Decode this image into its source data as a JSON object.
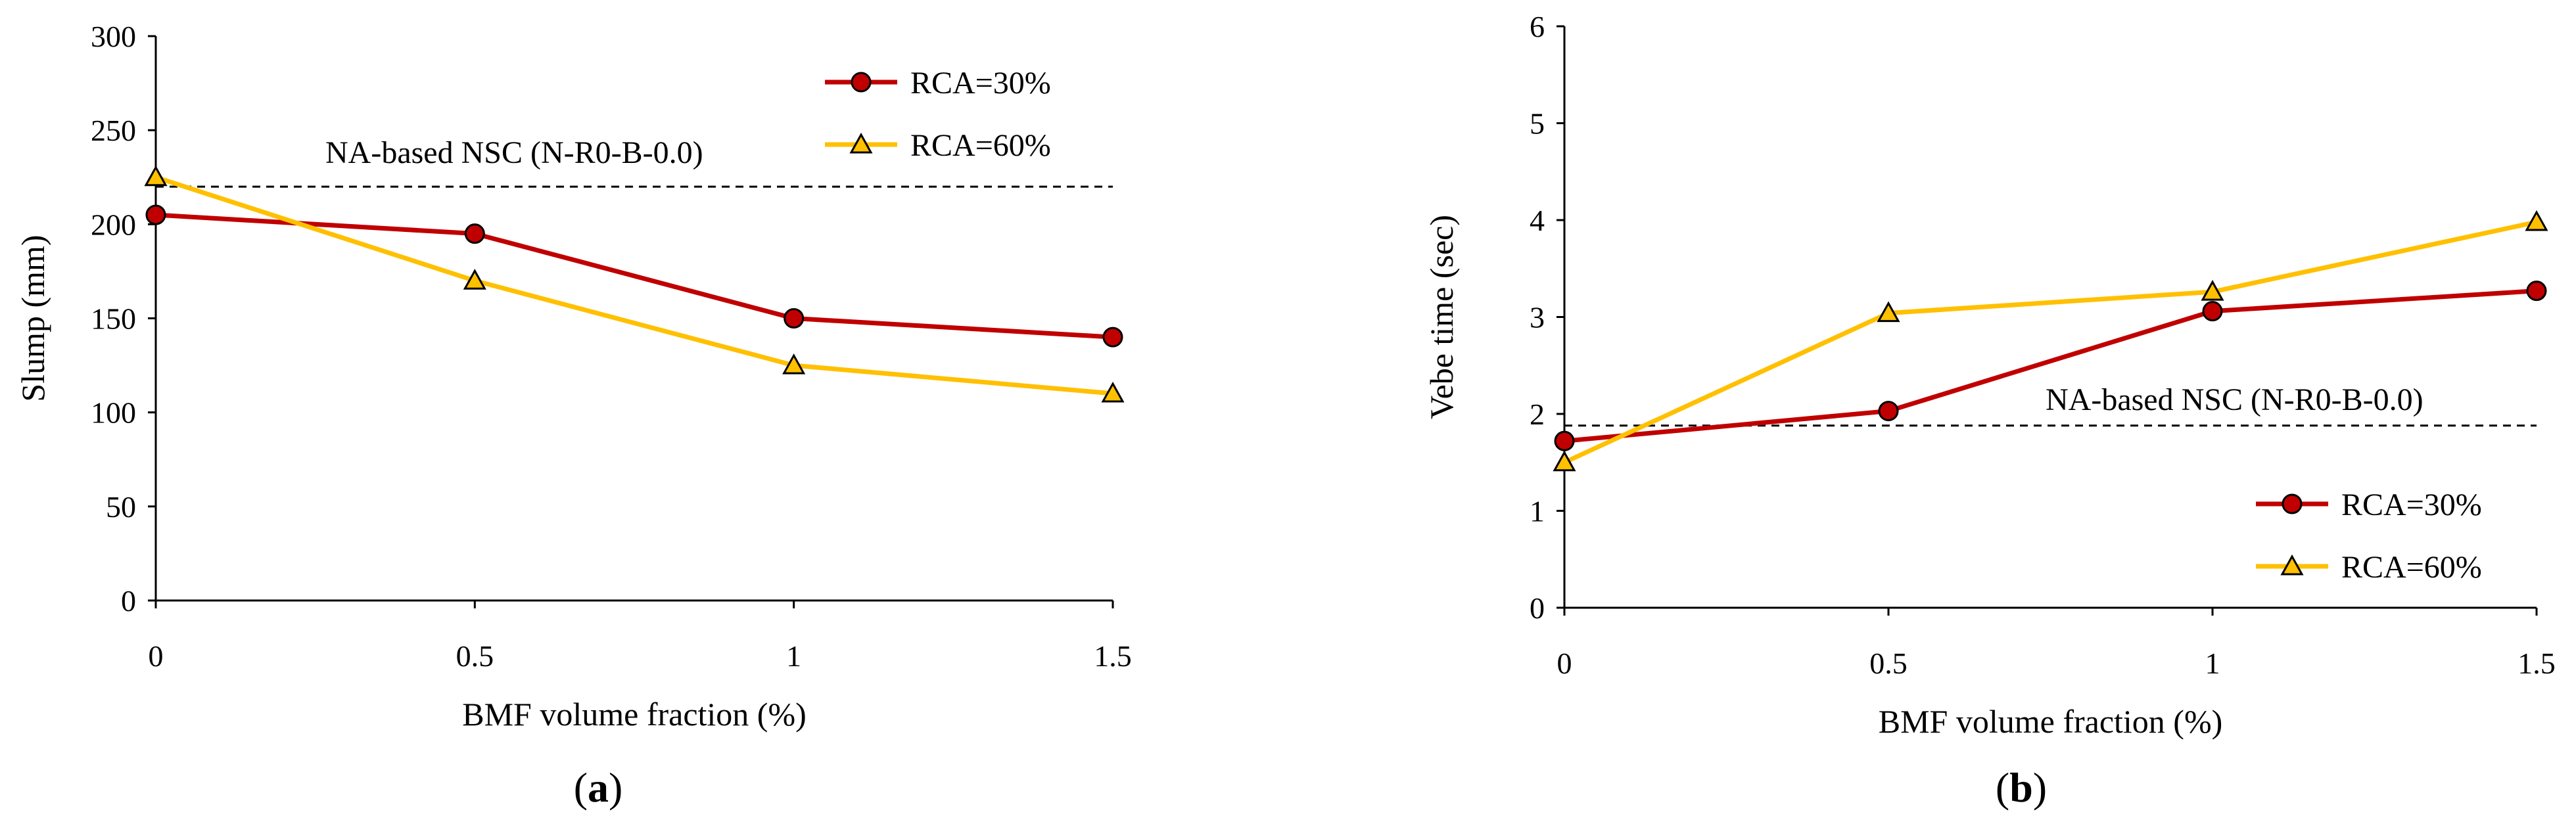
{
  "colors": {
    "rca30": "#C00000",
    "rca60": "#FFC000",
    "axis": "#000000",
    "reference_line": "#000000"
  },
  "chart_data": [
    {
      "type": "line",
      "panel_label": {
        "open": "(",
        "letter": "a",
        "close": ")"
      },
      "xlabel": "BMF volume fraction (%)",
      "ylabel": "Slump (mm)",
      "x": [
        0,
        0.5,
        1,
        1.5
      ],
      "x_tick_labels": [
        "0",
        "0.5",
        "1",
        "1.5"
      ],
      "xlim": [
        0,
        1.5
      ],
      "ylim": [
        0,
        300
      ],
      "y_ticks": [
        0,
        50,
        100,
        150,
        200,
        250,
        300
      ],
      "grid": false,
      "legend_position": "top-right",
      "series": [
        {
          "name": "RCA=30%",
          "marker": "circle",
          "color_key": "rca30",
          "values": [
            205,
            195,
            150,
            140
          ]
        },
        {
          "name": "RCA=60%",
          "marker": "triangle",
          "color_key": "rca60",
          "values": [
            225,
            170,
            125,
            110
          ]
        }
      ],
      "reference": {
        "label": "NA-based NSC (N-R0-B-0.0)",
        "value": 220,
        "style": "dashed",
        "label_position": "above-left"
      }
    },
    {
      "type": "line",
      "panel_label": {
        "open": "(",
        "letter": "b",
        "close": ")"
      },
      "xlabel": "BMF volume fraction (%)",
      "ylabel": "Vebe time (sec)",
      "x": [
        0,
        0.5,
        1,
        1.5
      ],
      "x_tick_labels": [
        "0",
        "0.5",
        "1",
        "1.5"
      ],
      "xlim": [
        0,
        1.5
      ],
      "ylim": [
        0,
        6
      ],
      "y_ticks": [
        0,
        1,
        2,
        3,
        4,
        5,
        6
      ],
      "grid": false,
      "legend_position": "bottom-right",
      "series": [
        {
          "name": "RCA=30%",
          "marker": "circle",
          "color_key": "rca30",
          "values": [
            1.72,
            2.03,
            3.06,
            3.27
          ]
        },
        {
          "name": "RCA=60%",
          "marker": "triangle",
          "color_key": "rca60",
          "values": [
            1.5,
            3.04,
            3.26,
            3.98
          ]
        }
      ],
      "reference": {
        "label": "NA-based NSC (N-R0-B-0.0)",
        "value": 1.88,
        "style": "dashed",
        "label_position": "above-right"
      }
    }
  ]
}
